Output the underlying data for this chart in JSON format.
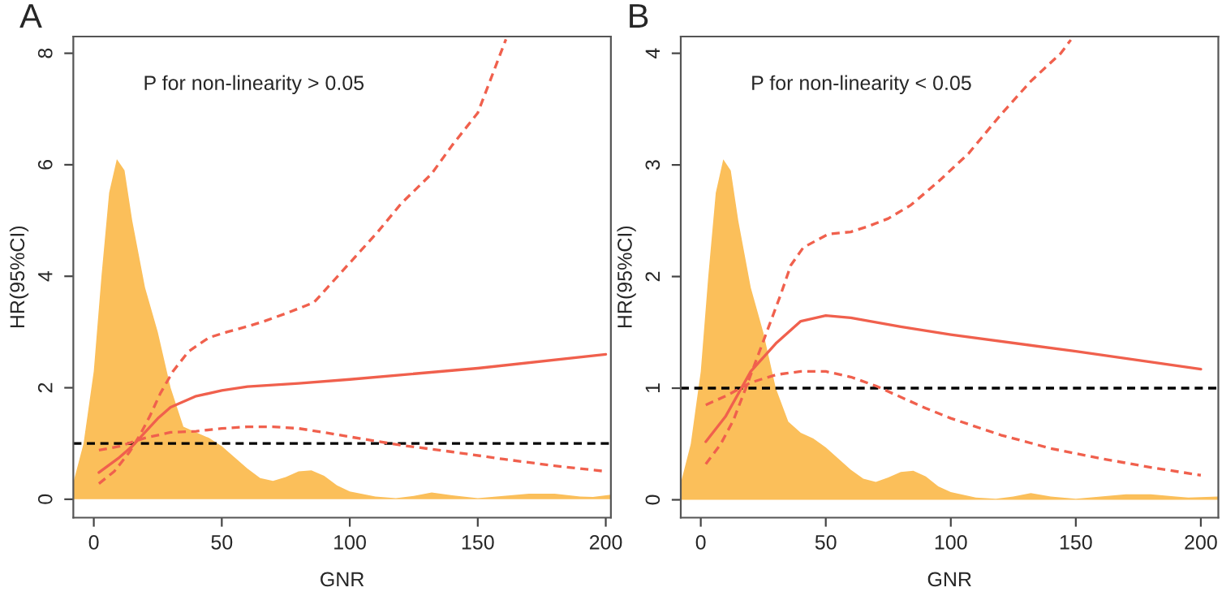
{
  "chart_data": [
    {
      "type": "line",
      "title": "A",
      "xlabel": "GNR",
      "ylabel": "HR(95%CI)",
      "annotations": [
        "P for non-linearity > 0.05"
      ],
      "xlim": [
        -8,
        202
      ],
      "ylim": [
        -0.33,
        8.3
      ],
      "xticks": [
        0,
        50,
        100,
        150,
        200
      ],
      "yticks": [
        0,
        2,
        4,
        6,
        8
      ],
      "grid": false,
      "ref_lines": [
        {
          "axis": "y",
          "value": 1,
          "color": "#000000",
          "line_style": "dashed"
        }
      ],
      "series": [
        {
          "type": "area",
          "color": "#fbbf5a",
          "x": [
            -8,
            -4,
            0,
            3,
            6,
            9,
            12,
            15,
            20,
            25,
            30,
            35,
            40,
            45,
            50,
            55,
            60,
            65,
            70,
            75,
            80,
            85,
            90,
            95,
            100,
            110,
            118,
            125,
            132,
            140,
            150,
            160,
            170,
            180,
            190,
            195,
            202
          ],
          "values": [
            0.3,
            1.0,
            2.3,
            4.0,
            5.5,
            6.1,
            5.9,
            5.0,
            3.8,
            3.0,
            2.0,
            1.3,
            1.2,
            1.1,
            0.95,
            0.75,
            0.55,
            0.38,
            0.33,
            0.4,
            0.5,
            0.52,
            0.42,
            0.25,
            0.14,
            0.05,
            0.02,
            0.06,
            0.12,
            0.07,
            0.02,
            0.06,
            0.1,
            0.1,
            0.05,
            0.04,
            0.08
          ]
        },
        {
          "color": "#f0604d",
          "line_style": "solid",
          "x": [
            2,
            10,
            15,
            20,
            25,
            30,
            40,
            50,
            60,
            80,
            100,
            150,
            200
          ],
          "values": [
            0.48,
            0.75,
            0.95,
            1.2,
            1.45,
            1.65,
            1.85,
            1.95,
            2.02,
            2.08,
            2.15,
            2.35,
            2.6
          ]
        },
        {
          "color": "#f0604d",
          "line_style": "dashed",
          "x": [
            2,
            8,
            14,
            18,
            22,
            26,
            31,
            37,
            45,
            52,
            60,
            67,
            76,
            86,
            100,
            111,
            120,
            132,
            140,
            150,
            161
          ],
          "values": [
            0.28,
            0.5,
            0.85,
            1.15,
            1.5,
            1.9,
            2.3,
            2.65,
            2.9,
            3.0,
            3.1,
            3.2,
            3.35,
            3.53,
            4.24,
            4.8,
            5.3,
            5.84,
            6.35,
            6.93,
            8.25
          ]
        },
        {
          "color": "#f0604d",
          "line_style": "dashed",
          "x": [
            2,
            10,
            20,
            30,
            40,
            50,
            60,
            70,
            80,
            90,
            100,
            120,
            140,
            160,
            180,
            200
          ],
          "values": [
            0.88,
            0.95,
            1.1,
            1.2,
            1.22,
            1.27,
            1.3,
            1.3,
            1.27,
            1.2,
            1.12,
            0.97,
            0.85,
            0.72,
            0.6,
            0.5
          ]
        }
      ]
    },
    {
      "type": "line",
      "title": "B",
      "xlabel": "GNR",
      "ylabel": "HR(95%CI)",
      "annotations": [
        "P for non-linearity < 0.05"
      ],
      "xlim": [
        -8,
        207
      ],
      "ylim": [
        -0.16,
        4.15
      ],
      "xticks": [
        0,
        50,
        100,
        150,
        200
      ],
      "yticks": [
        0,
        1,
        2,
        3,
        4
      ],
      "grid": false,
      "ref_lines": [
        {
          "axis": "y",
          "value": 1,
          "color": "#000000",
          "line_style": "dashed"
        }
      ],
      "series": [
        {
          "type": "area",
          "color": "#fbbf5a",
          "x": [
            -8,
            -4,
            0,
            3,
            6,
            9,
            12,
            15,
            20,
            25,
            30,
            35,
            40,
            45,
            50,
            55,
            60,
            65,
            70,
            75,
            80,
            85,
            90,
            95,
            100,
            110,
            118,
            125,
            132,
            140,
            150,
            160,
            170,
            180,
            190,
            195,
            207
          ],
          "values": [
            0.15,
            0.5,
            1.15,
            2.0,
            2.75,
            3.05,
            2.95,
            2.5,
            1.9,
            1.5,
            1.0,
            0.7,
            0.6,
            0.55,
            0.47,
            0.37,
            0.27,
            0.19,
            0.16,
            0.2,
            0.25,
            0.26,
            0.21,
            0.12,
            0.07,
            0.02,
            0.01,
            0.03,
            0.06,
            0.03,
            0.01,
            0.03,
            0.05,
            0.05,
            0.03,
            0.02,
            0.03
          ]
        },
        {
          "color": "#f0604d",
          "line_style": "solid",
          "x": [
            2,
            10,
            15,
            20,
            30,
            40,
            50,
            60,
            80,
            100,
            150,
            200
          ],
          "values": [
            0.52,
            0.75,
            0.95,
            1.15,
            1.4,
            1.6,
            1.65,
            1.63,
            1.55,
            1.48,
            1.33,
            1.17
          ]
        },
        {
          "color": "#f0604d",
          "line_style": "dashed",
          "x": [
            2,
            8,
            13,
            18,
            25,
            32,
            36,
            41,
            51,
            60,
            67,
            75,
            84,
            95,
            107,
            120,
            132,
            144,
            148
          ],
          "values": [
            0.32,
            0.5,
            0.71,
            1.0,
            1.42,
            1.84,
            2.1,
            2.26,
            2.38,
            2.4,
            2.45,
            2.52,
            2.64,
            2.85,
            3.1,
            3.45,
            3.75,
            4.0,
            4.12
          ]
        },
        {
          "color": "#f0604d",
          "line_style": "dashed",
          "x": [
            2,
            10,
            20,
            30,
            40,
            50,
            60,
            70,
            80,
            90,
            100,
            120,
            140,
            160,
            180,
            200
          ],
          "values": [
            0.85,
            0.93,
            1.05,
            1.12,
            1.15,
            1.15,
            1.1,
            1.02,
            0.92,
            0.82,
            0.73,
            0.58,
            0.46,
            0.37,
            0.29,
            0.22
          ]
        }
      ]
    }
  ]
}
